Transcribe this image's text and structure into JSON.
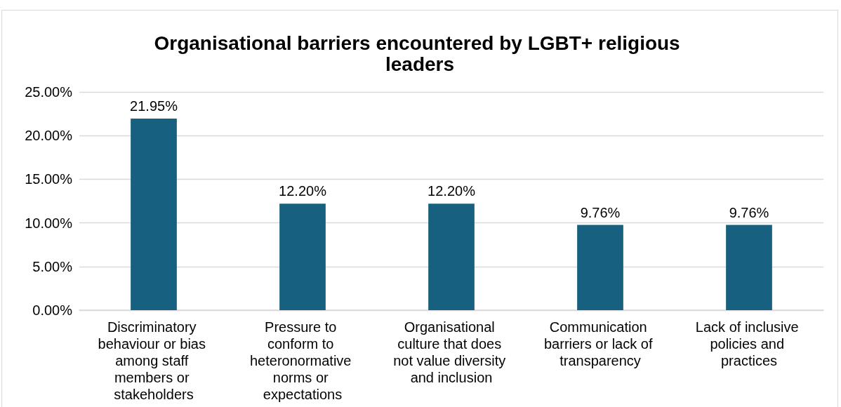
{
  "chart_data": {
    "type": "bar",
    "title": "Organisational barriers encountered by LGBT+ religious leaders",
    "categories": [
      "Discriminatory behaviour or bias among staff members or stakeholders",
      "Pressure to conform to heteronormative norms or expectations",
      "Organisational culture that does not value diversity and inclusion",
      "Communication barriers or lack of transparency",
      "Lack of inclusive policies and practices"
    ],
    "values": [
      21.95,
      12.2,
      12.2,
      9.76,
      9.76
    ],
    "value_labels": [
      "21.95%",
      "12.20%",
      "12.20%",
      "9.76%",
      "9.76%"
    ],
    "color": "#17607f",
    "ylim": [
      0,
      25
    ],
    "yticks": [
      {
        "value": 0,
        "label": "0.00%"
      },
      {
        "value": 5,
        "label": "5.00%"
      },
      {
        "value": 10,
        "label": "10.00%"
      },
      {
        "value": 15,
        "label": "15.00%"
      },
      {
        "value": 20,
        "label": "20.00%"
      },
      {
        "value": 25,
        "label": "25.00%"
      }
    ],
    "grid": "y"
  }
}
